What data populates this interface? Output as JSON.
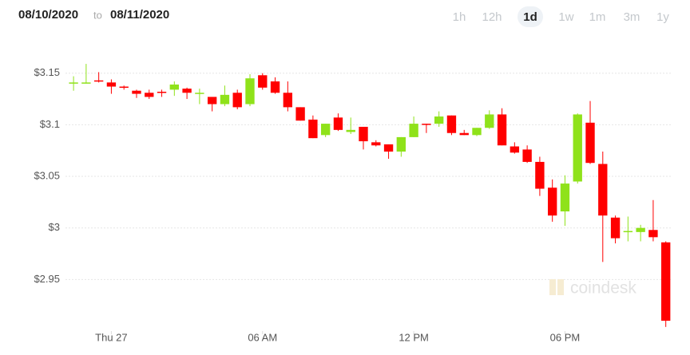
{
  "header": {
    "from": "08/10/2020",
    "to_word": "to",
    "to": "08/11/2020"
  },
  "ranges": [
    "1h",
    "12h",
    "1d",
    "1w",
    "1m",
    "3m",
    "1y"
  ],
  "active_range": "1d",
  "watermark": "coindesk",
  "chart_data": {
    "type": "candlestick",
    "up_color": "#8fe21a",
    "down_color": "#ff0000",
    "grid": true,
    "xlim": [
      -2.2,
      22.2
    ],
    "xticks": [
      {
        "value": 0,
        "label": "Thu 27"
      },
      {
        "value": 6,
        "label": "06 AM"
      },
      {
        "value": 12,
        "label": "12 PM"
      },
      {
        "value": 18,
        "label": "06 PM"
      }
    ],
    "ylim": [
      2.9,
      3.19
    ],
    "yticks": [
      {
        "value": 2.95,
        "label": "$2.95"
      },
      {
        "value": 3,
        "label": "$3"
      },
      {
        "value": 3.05,
        "label": "$3.05"
      },
      {
        "value": 3.1,
        "label": "$3.1"
      },
      {
        "value": 3.15,
        "label": "$3.15"
      }
    ],
    "x": [
      -1.5,
      -1,
      -0.5,
      0,
      0.5,
      1,
      1.5,
      2,
      2.5,
      3,
      3.5,
      4,
      4.5,
      5,
      5.5,
      6,
      6.5,
      7,
      7.5,
      8,
      8.5,
      9,
      9.5,
      10,
      10.5,
      11,
      11.5,
      12,
      12.5,
      13,
      13.5,
      14,
      14.5,
      15,
      15.5,
      16,
      16.5,
      17,
      17.5,
      18,
      18.5,
      19,
      19.5,
      20,
      20.5,
      21,
      21.5,
      22
    ],
    "open": [
      3.14,
      3.141,
      3.143,
      3.141,
      3.137,
      3.133,
      3.131,
      3.132,
      3.134,
      3.135,
      3.13,
      3.127,
      3.12,
      3.131,
      3.12,
      3.148,
      3.142,
      3.131,
      3.117,
      3.105,
      3.09,
      3.107,
      3.093,
      3.098,
      3.083,
      3.081,
      3.074,
      3.088,
      3.101,
      3.101,
      3.109,
      3.092,
      3.09,
      3.097,
      3.11,
      3.079,
      3.076,
      3.064,
      3.039,
      3.016,
      3.045,
      3.102,
      3.062,
      3.01,
      2.996,
      2.996,
      2.998,
      2.986
    ],
    "high": [
      3.147,
      3.159,
      3.151,
      3.144,
      3.138,
      3.134,
      3.134,
      3.134,
      3.142,
      3.136,
      3.135,
      3.127,
      3.138,
      3.134,
      3.149,
      3.15,
      3.146,
      3.142,
      3.117,
      3.109,
      3.101,
      3.111,
      3.107,
      3.098,
      3.085,
      3.081,
      3.088,
      3.108,
      3.101,
      3.113,
      3.109,
      3.095,
      3.097,
      3.114,
      3.116,
      3.083,
      3.08,
      3.069,
      3.047,
      3.051,
      3.111,
      3.123,
      3.074,
      3.012,
      3.011,
      3.003,
      3.027,
      2.987
    ],
    "low": [
      3.133,
      3.14,
      3.141,
      3.13,
      3.134,
      3.126,
      3.125,
      3.127,
      3.128,
      3.125,
      3.12,
      3.113,
      3.118,
      3.115,
      3.118,
      3.134,
      3.13,
      3.113,
      3.104,
      3.087,
      3.088,
      3.094,
      3.091,
      3.076,
      3.079,
      3.067,
      3.069,
      3.088,
      3.092,
      3.098,
      3.09,
      3.09,
      3.089,
      3.096,
      3.08,
      3.072,
      3.063,
      3.031,
      3.006,
      3.002,
      3.043,
      3.062,
      2.967,
      2.985,
      2.987,
      2.987,
      2.987,
      2.904
    ],
    "close": [
      3.141,
      3.141,
      3.142,
      3.137,
      3.136,
      3.13,
      3.127,
      3.131,
      3.139,
      3.131,
      3.131,
      3.12,
      3.129,
      3.117,
      3.145,
      3.136,
      3.131,
      3.117,
      3.104,
      3.087,
      3.101,
      3.095,
      3.095,
      3.084,
      3.08,
      3.074,
      3.088,
      3.101,
      3.1,
      3.108,
      3.092,
      3.09,
      3.097,
      3.11,
      3.08,
      3.073,
      3.064,
      3.038,
      3.012,
      3.043,
      3.11,
      3.063,
      3.012,
      2.99,
      2.997,
      3.0,
      2.991,
      2.91
    ]
  }
}
